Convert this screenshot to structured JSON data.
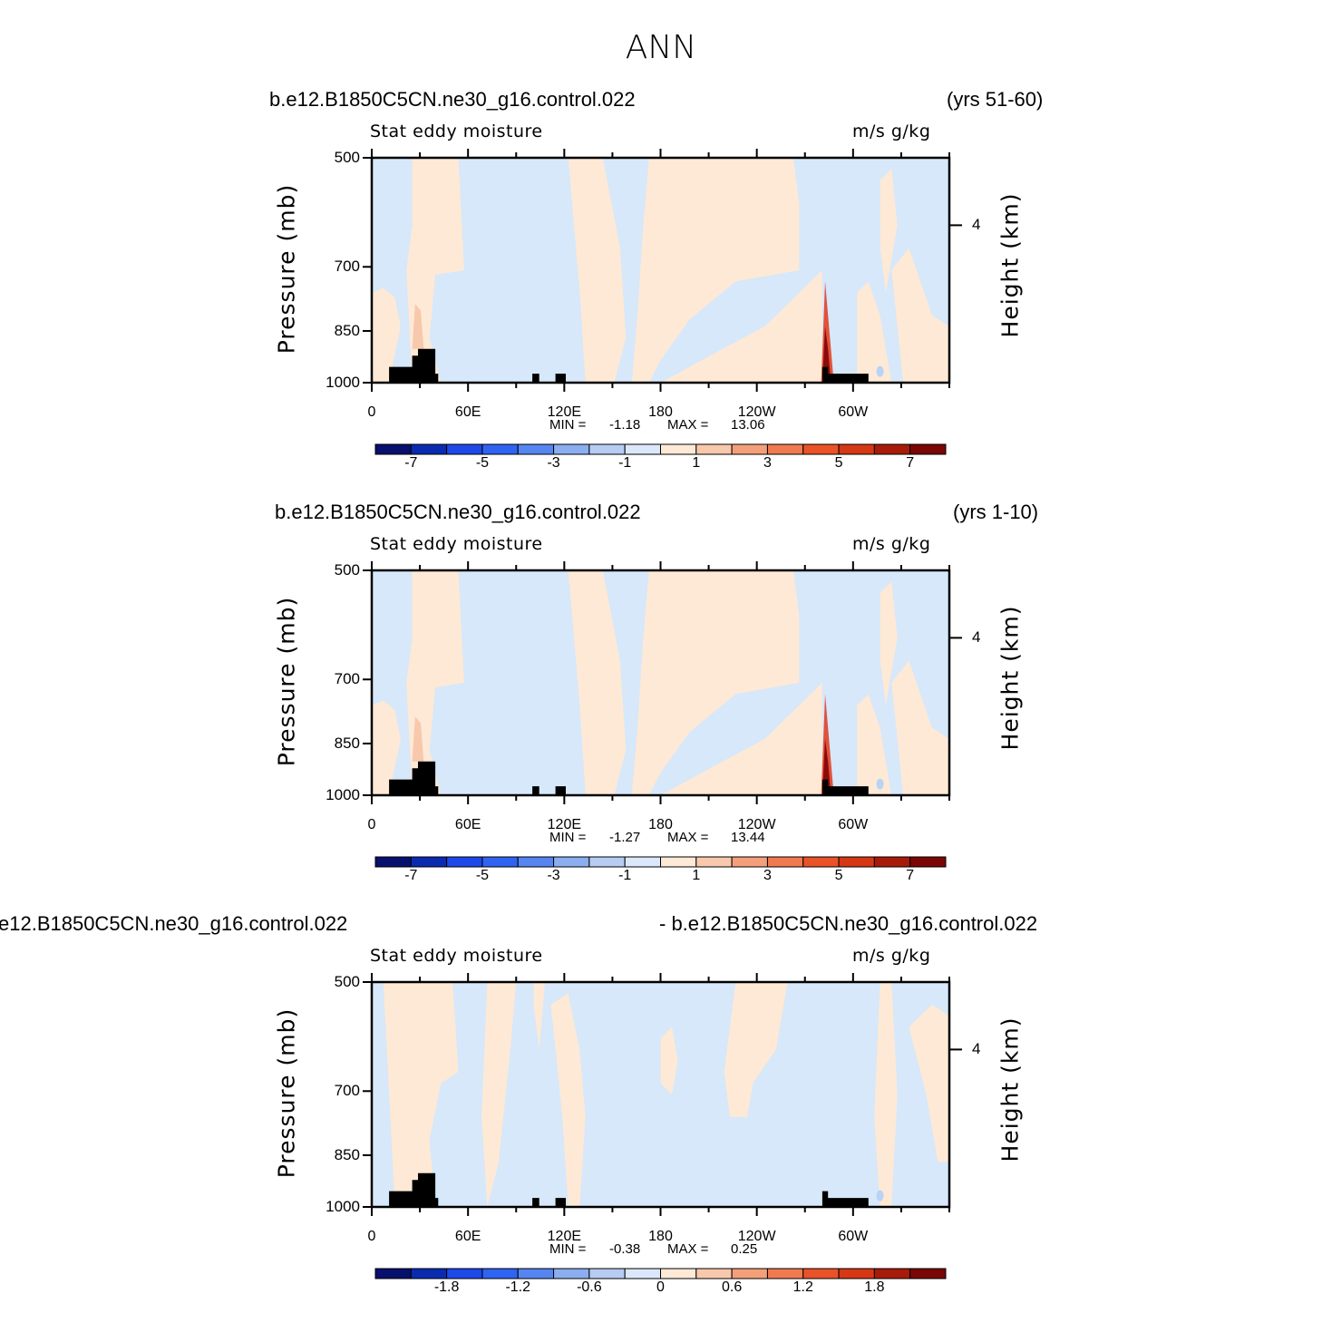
{
  "page_title": "ANN",
  "colors": {
    "land": "#000000",
    "pos_light": "#fde9d6",
    "pos_mid": "#f8c8ad",
    "pos_strong": "#e0523a",
    "pos_peak": "#8b0a0a",
    "neg_light": "#d6e8fa",
    "neg_mid": "#b9d3f5",
    "colorbar": [
      "#08106e",
      "#0a2bb0",
      "#1e48e8",
      "#2f63f2",
      "#5585f0",
      "#8aaeef",
      "#b7ccf3",
      "#dbe8fb",
      "#fde9d6",
      "#f8c8ad",
      "#f3a07a",
      "#f07a4f",
      "#ea5228",
      "#d63714",
      "#a81b0a",
      "#7a0606"
    ]
  },
  "chart_data": [
    {
      "type": "contour",
      "case_left": "b.e12.B1850C5CN.ne30_g16.control.022",
      "case_right": "(yrs 51-60)",
      "variable": "Stat eddy moisture",
      "units": "m/s g/kg",
      "ylabel_left": "Pressure (mb)",
      "ylabel_right": "Height (km)",
      "y_ticks": [
        "500",
        "700",
        "850",
        "1000"
      ],
      "y_right_ticks": [
        "4"
      ],
      "x_ticks": [
        "0",
        "60E",
        "120E",
        "180",
        "120W",
        "60W"
      ],
      "min_label": "MIN =",
      "min_value": "-1.18",
      "max_label": "MAX =",
      "max_value": "13.06",
      "colorbar_labels": [
        "-7",
        "-5",
        "-3",
        "-1",
        "1",
        "3",
        "5",
        "7"
      ]
    },
    {
      "type": "contour",
      "case_left": "b.e12.B1850C5CN.ne30_g16.control.022",
      "case_right": "(yrs 1-10)",
      "variable": "Stat eddy moisture",
      "units": "m/s g/kg",
      "ylabel_left": "Pressure (mb)",
      "ylabel_right": "Height (km)",
      "y_ticks": [
        "500",
        "700",
        "850",
        "1000"
      ],
      "y_right_ticks": [
        "4"
      ],
      "x_ticks": [
        "0",
        "60E",
        "120E",
        "180",
        "120W",
        "60W"
      ],
      "min_label": "MIN =",
      "min_value": "-1.27",
      "max_label": "MAX =",
      "max_value": "13.44",
      "colorbar_labels": [
        "-7",
        "-5",
        "-3",
        "-1",
        "1",
        "3",
        "5",
        "7"
      ]
    },
    {
      "type": "contour",
      "case_left": "e12.B1850C5CN.ne30_g16.control.022",
      "case_right": "- b.e12.B1850C5CN.ne30_g16.control.022",
      "variable": "Stat eddy moisture",
      "units": "m/s g/kg",
      "ylabel_left": "Pressure (mb)",
      "ylabel_right": "Height (km)",
      "y_ticks": [
        "500",
        "700",
        "850",
        "1000"
      ],
      "y_right_ticks": [
        "4"
      ],
      "x_ticks": [
        "0",
        "60E",
        "120E",
        "180",
        "120W",
        "60W"
      ],
      "min_label": "MIN =",
      "min_value": "-0.38",
      "max_label": "MAX =",
      "max_value": "0.25",
      "colorbar_labels": [
        "-1.8",
        "-1.2",
        "-0.6",
        "0",
        "0.6",
        "1.2",
        "1.8"
      ]
    }
  ]
}
